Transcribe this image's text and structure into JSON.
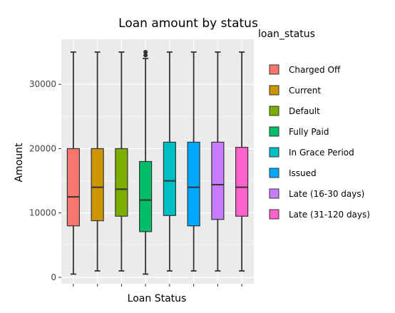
{
  "chart_data": {
    "type": "box",
    "title": "Loan amount by status",
    "xlabel": "Loan Status",
    "ylabel": "Amount",
    "ylim": [
      -1000,
      37000
    ],
    "yticks": [
      0,
      10000,
      20000,
      30000
    ],
    "ytick_labels": [
      "0",
      "10000",
      "20000",
      "30000"
    ],
    "legend_title": "loan_status",
    "legend_position": "right",
    "grid": true,
    "categories": [
      "Charged Off",
      "Current",
      "Default",
      "Fully Paid",
      "In Grace Period",
      "Issued",
      "Late (16-30 days)",
      "Late (31-120 days)"
    ],
    "boxes": [
      {
        "name": "Charged Off",
        "min": 500,
        "q1": 8000,
        "median": 12500,
        "q3": 20000,
        "max": 35000,
        "color": "#F8766D",
        "outliers": []
      },
      {
        "name": "Current",
        "min": 1000,
        "q1": 8800,
        "median": 14000,
        "q3": 20000,
        "max": 35000,
        "color": "#CD9600",
        "outliers": []
      },
      {
        "name": "Default",
        "min": 1000,
        "q1": 9500,
        "median": 13700,
        "q3": 20000,
        "max": 35000,
        "color": "#7CAE00",
        "outliers": []
      },
      {
        "name": "Fully Paid",
        "min": 500,
        "q1": 7100,
        "median": 12000,
        "q3": 18000,
        "max": 34000,
        "color": "#00BE67",
        "outliers": [
          34500,
          35000
        ]
      },
      {
        "name": "In Grace Period",
        "min": 1000,
        "q1": 9600,
        "median": 15000,
        "q3": 21000,
        "max": 35000,
        "color": "#00BFC4",
        "outliers": []
      },
      {
        "name": "Issued",
        "min": 1000,
        "q1": 8000,
        "median": 14000,
        "q3": 21000,
        "max": 35000,
        "color": "#00A9FF",
        "outliers": []
      },
      {
        "name": "Late (16-30 days)",
        "min": 1000,
        "q1": 9000,
        "median": 14400,
        "q3": 21000,
        "max": 35000,
        "color": "#C77CFF",
        "outliers": []
      },
      {
        "name": "Late (31-120 days)",
        "min": 1000,
        "q1": 9500,
        "median": 14000,
        "q3": 20200,
        "max": 35000,
        "color": "#FF61CC",
        "outliers": []
      }
    ]
  }
}
